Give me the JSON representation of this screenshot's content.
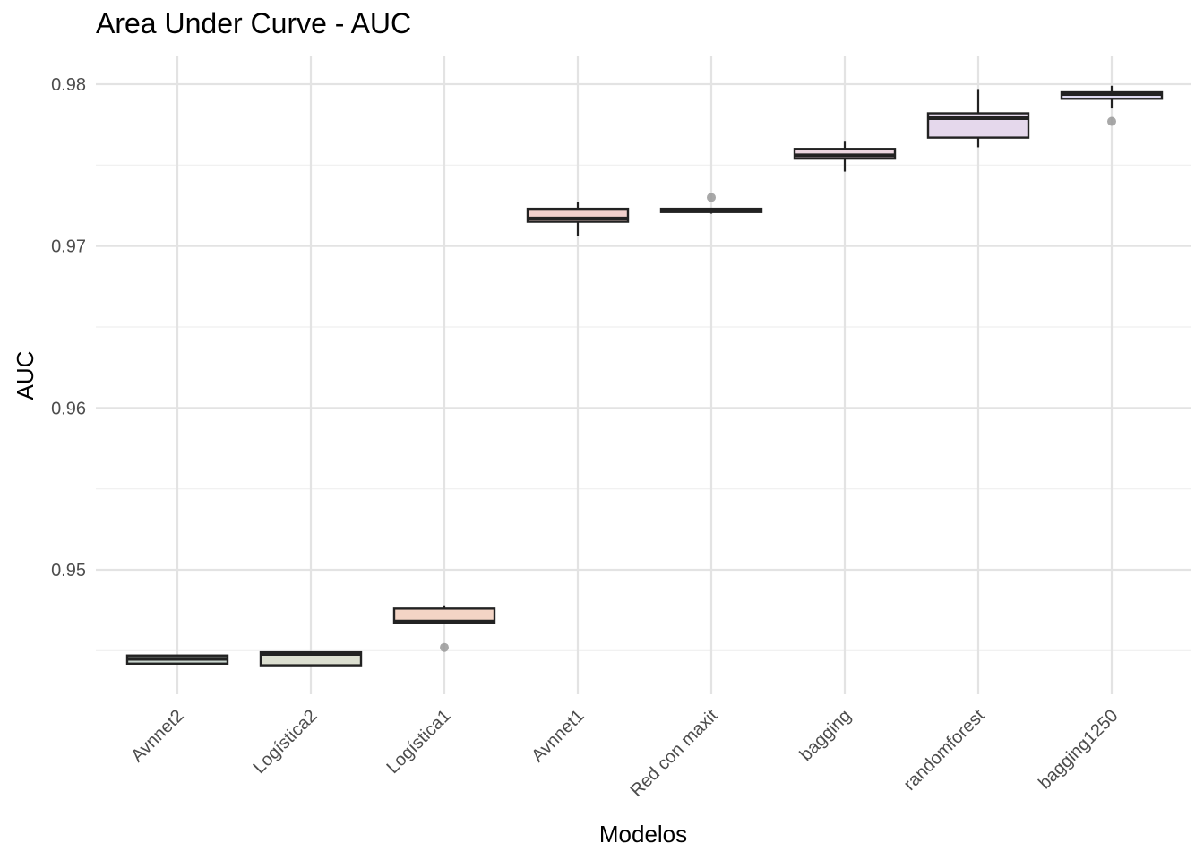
{
  "chart_data": {
    "type": "boxplot",
    "title": "Area Under Curve - AUC",
    "xlabel": "Modelos",
    "ylabel": "AUC",
    "ylim": [
      0.9416,
      0.9818
    ],
    "yticks": [
      0.95,
      0.96,
      0.97,
      0.98
    ],
    "ytick_labels": [
      "0.95",
      "0.96",
      "0.97",
      "0.98"
    ],
    "grid": true,
    "categories": [
      "Avnnet2",
      "Logística2",
      "Logística1",
      "Avnnet1",
      "Red con maxit",
      "bagging",
      "randomforest",
      "bagging1250"
    ],
    "boxes": [
      {
        "min": 0.9442,
        "q1": 0.9442,
        "median": 0.9445,
        "q3": 0.9447,
        "max": 0.9447,
        "outliers": [],
        "fill": "#c9d6cf"
      },
      {
        "min": 0.9441,
        "q1": 0.9441,
        "median": 0.9448,
        "q3": 0.9449,
        "max": 0.9449,
        "outliers": [],
        "fill": "#dcdfd0"
      },
      {
        "min": 0.9467,
        "q1": 0.9467,
        "median": 0.9468,
        "q3": 0.9476,
        "max": 0.9478,
        "outliers": [
          0.9452
        ],
        "fill": "#f3d4c5"
      },
      {
        "min": 0.9706,
        "q1": 0.9715,
        "median": 0.9717,
        "q3": 0.9723,
        "max": 0.9727,
        "outliers": [],
        "fill": "#f1d0cc"
      },
      {
        "min": 0.972,
        "q1": 0.9721,
        "median": 0.9722,
        "q3": 0.9723,
        "max": 0.9723,
        "outliers": [
          0.973
        ],
        "fill": "#efd0d6"
      },
      {
        "min": 0.9746,
        "q1": 0.9754,
        "median": 0.9756,
        "q3": 0.976,
        "max": 0.9765,
        "outliers": [],
        "fill": "#ecd6e0"
      },
      {
        "min": 0.9761,
        "q1": 0.9767,
        "median": 0.9779,
        "q3": 0.9782,
        "max": 0.9797,
        "outliers": [],
        "fill": "#e5d8ec"
      },
      {
        "min": 0.9785,
        "q1": 0.9791,
        "median": 0.9794,
        "q3": 0.9795,
        "max": 0.9799,
        "outliers": [
          0.9777
        ],
        "fill": "#dcd8ee"
      }
    ]
  },
  "colors": {
    "grid_major": "#e3e3e3",
    "grid_minor": "#efefef",
    "box_stroke": "#222222",
    "outlier": "#999999",
    "tick_text": "#4d4d4d"
  }
}
